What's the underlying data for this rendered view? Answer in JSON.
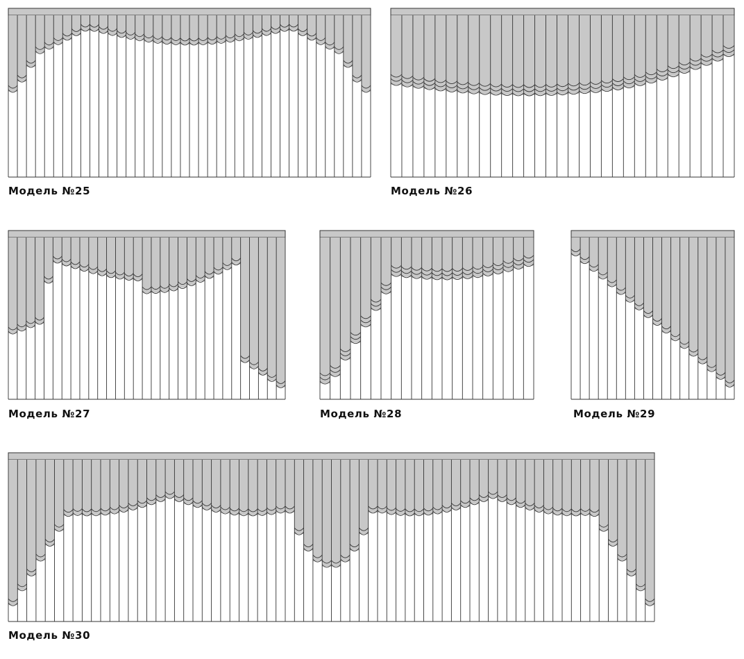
{
  "colors": {
    "fabric": "#c8c8c8",
    "line": "#333333",
    "rail": "#c8c8c8",
    "background": "#ffffff"
  },
  "models": [
    {
      "id": "m25",
      "label": "Модель №25",
      "slats": 40,
      "shape": "arch",
      "valance_layers": 2
    },
    {
      "id": "m26",
      "label": "Модель №26",
      "slats": 31,
      "shape": "wave",
      "valance_layers": 3
    },
    {
      "id": "m27",
      "label": "Модель №27",
      "slats": 31,
      "shape": "asymmetric-arch",
      "valance_layers": 2
    },
    {
      "id": "m28",
      "label": "Модель №28",
      "slats": 21,
      "shape": "left-drop",
      "valance_layers": 3
    },
    {
      "id": "m29",
      "label": "Модель №29",
      "slats": 18,
      "shape": "diagonal",
      "valance_layers": 2
    },
    {
      "id": "m30",
      "label": "Модель №30",
      "slats": 70,
      "shape": "multi-swag",
      "valance_layers": 2
    }
  ]
}
